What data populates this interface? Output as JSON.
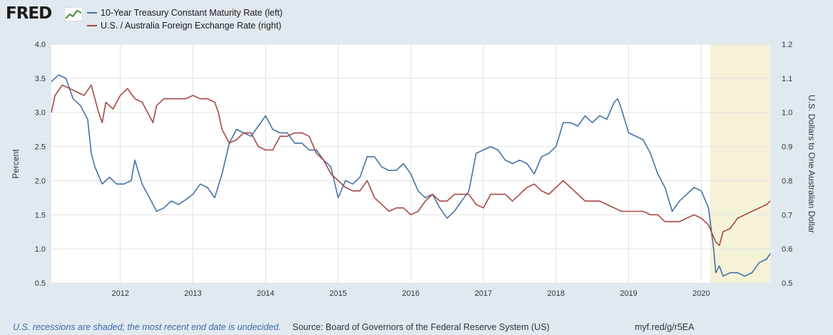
{
  "header": {
    "logo_text": "FRED",
    "legend": [
      {
        "label": "10-Year Treasury Constant Maturity Rate (left)",
        "color": "#4572a7"
      },
      {
        "label": "U.S. / Australia Foreign Exchange Rate (right)",
        "color": "#aa4643"
      }
    ]
  },
  "footer": {
    "note": "U.S. recessions are shaded; the most recent end date is undecided.",
    "source": "Source: Board of Governors of the Federal Reserve System (US)",
    "url": "myf.red/g/r5EA"
  },
  "chart_data": {
    "type": "line",
    "x_ticks": [
      "2012",
      "2013",
      "2014",
      "2015",
      "2016",
      "2017",
      "2018",
      "2019",
      "2020"
    ],
    "y_left": {
      "label": "Percent",
      "ylim": [
        0.5,
        4.0
      ],
      "ticks": [
        "0.5",
        "1.0",
        "1.5",
        "2.0",
        "2.5",
        "3.0",
        "3.5",
        "4.0"
      ]
    },
    "y_right": {
      "label": "U.S. Dollars to One Australian Dollar",
      "ylim": [
        0.5,
        1.2
      ],
      "ticks": [
        "0.5",
        "0.6",
        "0.7",
        "0.8",
        "0.9",
        "1.0",
        "1.1",
        "1.2"
      ]
    },
    "recession": {
      "start": 2020.12,
      "end": 2020.95,
      "color": "#f5f2d8"
    },
    "x_range": [
      2011.05,
      2020.95
    ],
    "series": [
      {
        "name": "10-Year Treasury Constant Maturity Rate (left)",
        "axis": "left",
        "color": "#4572a7",
        "x": [
          2011.05,
          2011.15,
          2011.25,
          2011.35,
          2011.45,
          2011.55,
          2011.6,
          2011.65,
          2011.75,
          2011.85,
          2011.95,
          2012.05,
          2012.15,
          2012.2,
          2012.3,
          2012.4,
          2012.5,
          2012.6,
          2012.7,
          2012.8,
          2012.9,
          2013.0,
          2013.1,
          2013.2,
          2013.3,
          2013.4,
          2013.5,
          2013.6,
          2013.7,
          2013.8,
          2013.9,
          2014.0,
          2014.1,
          2014.2,
          2014.3,
          2014.4,
          2014.5,
          2014.6,
          2014.7,
          2014.8,
          2014.9,
          2015.0,
          2015.1,
          2015.2,
          2015.3,
          2015.4,
          2015.5,
          2015.6,
          2015.7,
          2015.8,
          2015.9,
          2016.0,
          2016.1,
          2016.2,
          2016.3,
          2016.4,
          2016.5,
          2016.55,
          2016.6,
          2016.7,
          2016.8,
          2016.9,
          2017.0,
          2017.1,
          2017.2,
          2017.3,
          2017.4,
          2017.5,
          2017.6,
          2017.7,
          2017.8,
          2017.9,
          2018.0,
          2018.1,
          2018.2,
          2018.3,
          2018.4,
          2018.5,
          2018.6,
          2018.7,
          2018.8,
          2018.85,
          2018.9,
          2019.0,
          2019.1,
          2019.2,
          2019.3,
          2019.4,
          2019.5,
          2019.6,
          2019.7,
          2019.8,
          2019.9,
          2020.0,
          2020.1,
          2020.17,
          2020.2,
          2020.25,
          2020.3,
          2020.4,
          2020.5,
          2020.6,
          2020.7,
          2020.8,
          2020.9,
          2020.95
        ],
        "y": [
          3.45,
          3.55,
          3.5,
          3.2,
          3.1,
          2.9,
          2.4,
          2.2,
          1.95,
          2.05,
          1.95,
          1.95,
          2.0,
          2.3,
          1.95,
          1.75,
          1.55,
          1.6,
          1.7,
          1.65,
          1.72,
          1.8,
          1.95,
          1.9,
          1.75,
          2.1,
          2.55,
          2.75,
          2.7,
          2.65,
          2.8,
          2.95,
          2.75,
          2.7,
          2.7,
          2.55,
          2.55,
          2.45,
          2.45,
          2.3,
          2.2,
          1.75,
          2.0,
          1.95,
          2.05,
          2.35,
          2.35,
          2.2,
          2.15,
          2.15,
          2.25,
          2.1,
          1.85,
          1.75,
          1.8,
          1.6,
          1.45,
          1.5,
          1.55,
          1.7,
          1.85,
          2.4,
          2.45,
          2.5,
          2.45,
          2.3,
          2.25,
          2.3,
          2.25,
          2.1,
          2.35,
          2.4,
          2.5,
          2.85,
          2.85,
          2.8,
          2.95,
          2.85,
          2.95,
          2.9,
          3.15,
          3.2,
          3.05,
          2.7,
          2.65,
          2.6,
          2.4,
          2.1,
          1.9,
          1.55,
          1.7,
          1.8,
          1.9,
          1.85,
          1.6,
          1.0,
          0.65,
          0.75,
          0.6,
          0.65,
          0.65,
          0.6,
          0.65,
          0.8,
          0.85,
          0.93
        ]
      },
      {
        "name": "U.S. / Australia Foreign Exchange Rate (right)",
        "axis": "right",
        "color": "#aa4643",
        "x": [
          2011.05,
          2011.1,
          2011.2,
          2011.3,
          2011.4,
          2011.5,
          2011.6,
          2011.7,
          2011.75,
          2011.8,
          2011.9,
          2012.0,
          2012.1,
          2012.2,
          2012.3,
          2012.4,
          2012.45,
          2012.5,
          2012.6,
          2012.7,
          2012.8,
          2012.9,
          2013.0,
          2013.1,
          2013.2,
          2013.3,
          2013.35,
          2013.4,
          2013.5,
          2013.6,
          2013.7,
          2013.8,
          2013.9,
          2014.0,
          2014.1,
          2014.2,
          2014.3,
          2014.4,
          2014.5,
          2014.6,
          2014.7,
          2014.8,
          2014.9,
          2015.0,
          2015.1,
          2015.2,
          2015.3,
          2015.4,
          2015.5,
          2015.6,
          2015.7,
          2015.8,
          2015.9,
          2016.0,
          2016.1,
          2016.2,
          2016.3,
          2016.4,
          2016.5,
          2016.6,
          2016.7,
          2016.8,
          2016.9,
          2017.0,
          2017.1,
          2017.2,
          2017.3,
          2017.4,
          2017.5,
          2017.6,
          2017.7,
          2017.8,
          2017.9,
          2018.0,
          2018.1,
          2018.2,
          2018.3,
          2018.4,
          2018.5,
          2018.6,
          2018.7,
          2018.8,
          2018.9,
          2019.0,
          2019.1,
          2019.2,
          2019.3,
          2019.4,
          2019.5,
          2019.6,
          2019.7,
          2019.8,
          2019.9,
          2020.0,
          2020.1,
          2020.2,
          2020.25,
          2020.3,
          2020.4,
          2020.5,
          2020.6,
          2020.7,
          2020.8,
          2020.9,
          2020.95
        ],
        "y": [
          1.0,
          1.05,
          1.08,
          1.07,
          1.06,
          1.05,
          1.08,
          1.0,
          0.97,
          1.03,
          1.01,
          1.05,
          1.07,
          1.04,
          1.03,
          0.99,
          0.97,
          1.02,
          1.04,
          1.04,
          1.04,
          1.04,
          1.05,
          1.04,
          1.04,
          1.03,
          1.0,
          0.95,
          0.91,
          0.92,
          0.94,
          0.94,
          0.9,
          0.89,
          0.89,
          0.93,
          0.93,
          0.94,
          0.94,
          0.93,
          0.88,
          0.86,
          0.82,
          0.8,
          0.78,
          0.77,
          0.77,
          0.8,
          0.75,
          0.73,
          0.71,
          0.72,
          0.72,
          0.7,
          0.71,
          0.74,
          0.76,
          0.74,
          0.74,
          0.76,
          0.76,
          0.76,
          0.73,
          0.72,
          0.76,
          0.76,
          0.76,
          0.74,
          0.76,
          0.78,
          0.79,
          0.77,
          0.76,
          0.78,
          0.8,
          0.78,
          0.76,
          0.74,
          0.74,
          0.74,
          0.73,
          0.72,
          0.71,
          0.71,
          0.71,
          0.71,
          0.7,
          0.7,
          0.68,
          0.68,
          0.68,
          0.69,
          0.7,
          0.69,
          0.67,
          0.62,
          0.61,
          0.65,
          0.66,
          0.69,
          0.7,
          0.71,
          0.72,
          0.73,
          0.74
        ]
      }
    ]
  }
}
